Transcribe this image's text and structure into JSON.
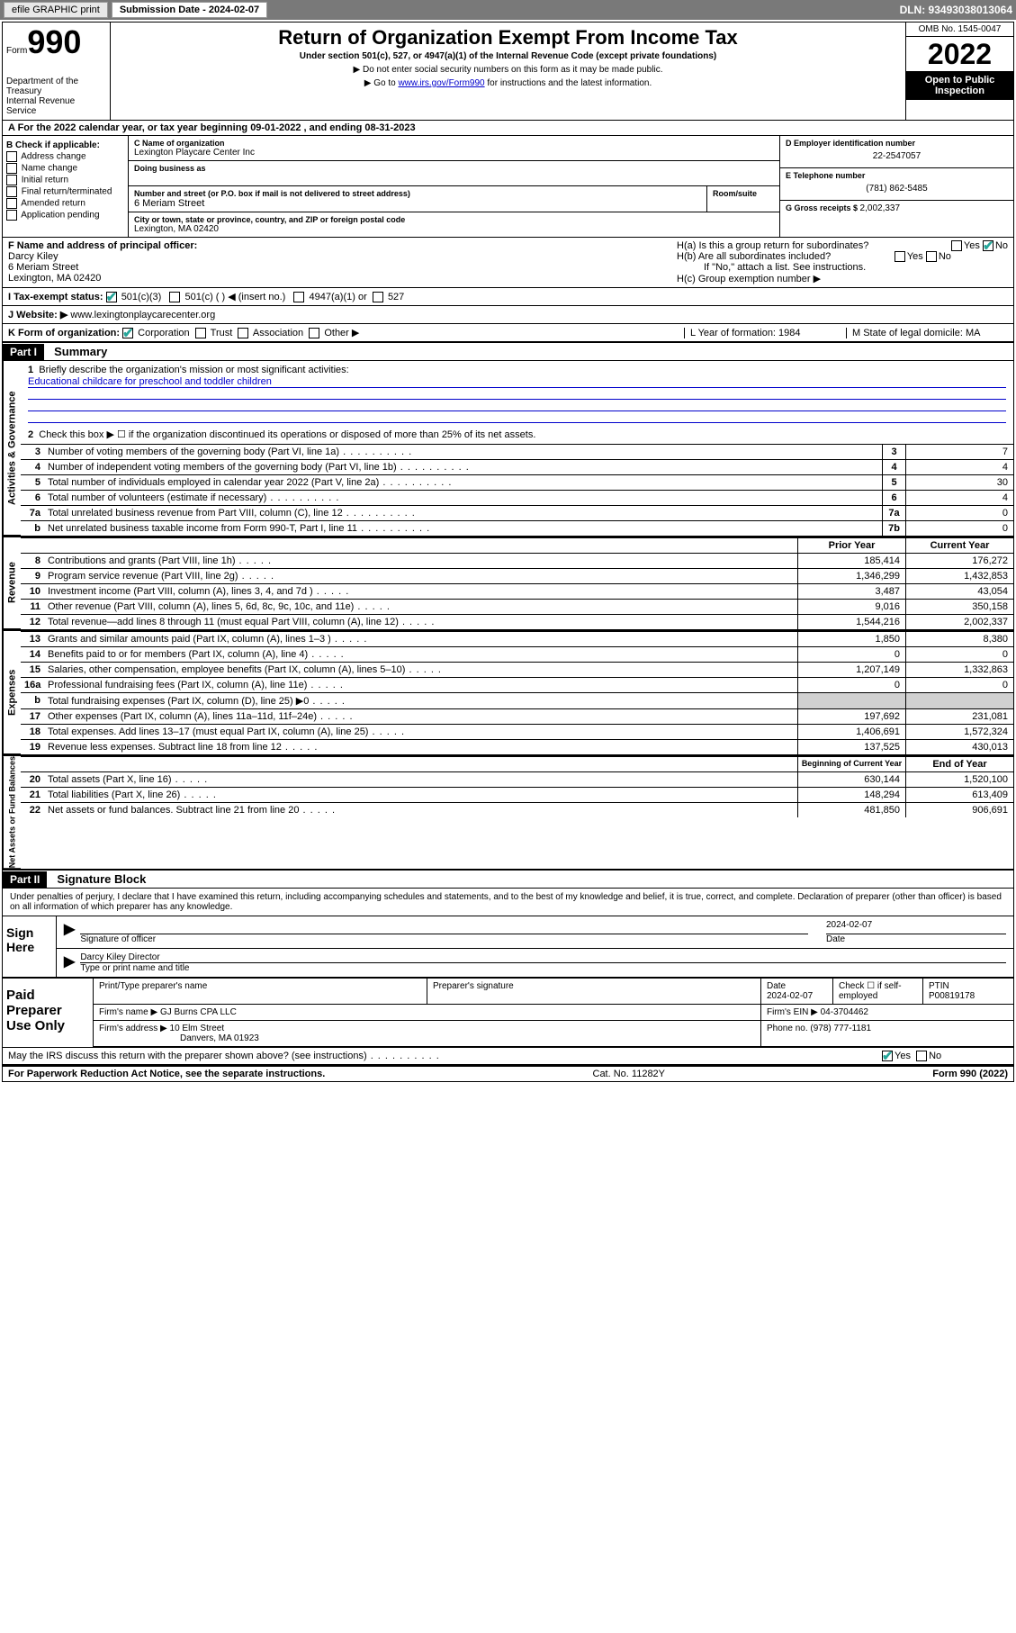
{
  "toolbar": {
    "efile": "efile GRAPHIC print",
    "sub_label": "Submission Date - 2024-02-07",
    "dln": "DLN: 93493038013064"
  },
  "header": {
    "form_word": "Form",
    "form_num": "990",
    "dept": "Department of the Treasury\nInternal Revenue Service",
    "title": "Return of Organization Exempt From Income Tax",
    "sub": "Under section 501(c), 527, or 4947(a)(1) of the Internal Revenue Code (except private foundations)",
    "note1": "▶ Do not enter social security numbers on this form as it may be made public.",
    "note2_pre": "▶ Go to ",
    "note2_link": "www.irs.gov/Form990",
    "note2_post": " for instructions and the latest information.",
    "omb": "OMB No. 1545-0047",
    "year": "2022",
    "inspect": "Open to Public Inspection"
  },
  "row_a": "A For the 2022 calendar year, or tax year beginning 09-01-2022   , and ending 08-31-2023",
  "section_b": {
    "label": "B Check if applicable:",
    "opts": [
      "Address change",
      "Name change",
      "Initial return",
      "Final return/terminated",
      "Amended return",
      "Application pending"
    ]
  },
  "section_c": {
    "name_label": "C Name of organization",
    "name": "Lexington Playcare Center Inc",
    "dba_label": "Doing business as",
    "street_label": "Number and street (or P.O. box if mail is not delivered to street address)",
    "room_label": "Room/suite",
    "street": "6 Meriam Street",
    "city_label": "City or town, state or province, country, and ZIP or foreign postal code",
    "city": "Lexington, MA  02420"
  },
  "section_d": {
    "ein_label": "D Employer identification number",
    "ein": "22-2547057",
    "phone_label": "E Telephone number",
    "phone": "(781) 862-5485",
    "gross_label": "G Gross receipts $ ",
    "gross": "2,002,337"
  },
  "section_f": {
    "label": "F Name and address of principal officer:",
    "name": "Darcy Kiley",
    "addr1": "6 Meriam Street",
    "addr2": "Lexington, MA  02420"
  },
  "section_h": {
    "ha": "H(a)  Is this a group return for subordinates?",
    "hb": "H(b)  Are all subordinates included?",
    "hb_note": "If \"No,\" attach a list. See instructions.",
    "hc": "H(c)  Group exemption number ▶"
  },
  "row_i": {
    "label": "I   Tax-exempt status:",
    "opts": [
      "501(c)(3)",
      "501(c) (  ) ◀ (insert no.)",
      "4947(a)(1) or",
      "527"
    ]
  },
  "row_j": {
    "label": "J   Website: ▶ ",
    "site": "www.lexingtonplaycarecenter.org"
  },
  "row_k": {
    "label": "K Form of organization:",
    "opts": [
      "Corporation",
      "Trust",
      "Association",
      "Other ▶"
    ],
    "l": "L Year of formation: 1984",
    "m": "M State of legal domicile: MA"
  },
  "part1": {
    "hdr": "Part I",
    "title": "Summary",
    "q1": "Briefly describe the organization's mission or most significant activities:",
    "q1_ans": "Educational childcare for preschool and toddler children",
    "q2": "Check this box ▶ ☐  if the organization discontinued its operations or disposed of more than 25% of its net assets."
  },
  "gov": {
    "side": "Activities & Governance",
    "rows": [
      {
        "n": "3",
        "d": "Number of voting members of the governing body (Part VI, line 1a)",
        "box": "3",
        "v": "7"
      },
      {
        "n": "4",
        "d": "Number of independent voting members of the governing body (Part VI, line 1b)",
        "box": "4",
        "v": "4"
      },
      {
        "n": "5",
        "d": "Total number of individuals employed in calendar year 2022 (Part V, line 2a)",
        "box": "5",
        "v": "30"
      },
      {
        "n": "6",
        "d": "Total number of volunteers (estimate if necessary)",
        "box": "6",
        "v": "4"
      },
      {
        "n": "7a",
        "d": "Total unrelated business revenue from Part VIII, column (C), line 12",
        "box": "7a",
        "v": "0"
      },
      {
        "n": "b",
        "d": "Net unrelated business taxable income from Form 990-T, Part I, line 11",
        "box": "7b",
        "v": "0"
      }
    ]
  },
  "rev": {
    "side": "Revenue",
    "hdr_py": "Prior Year",
    "hdr_cy": "Current Year",
    "rows": [
      {
        "n": "8",
        "d": "Contributions and grants (Part VIII, line 1h)",
        "py": "185,414",
        "cy": "176,272"
      },
      {
        "n": "9",
        "d": "Program service revenue (Part VIII, line 2g)",
        "py": "1,346,299",
        "cy": "1,432,853"
      },
      {
        "n": "10",
        "d": "Investment income (Part VIII, column (A), lines 3, 4, and 7d )",
        "py": "3,487",
        "cy": "43,054"
      },
      {
        "n": "11",
        "d": "Other revenue (Part VIII, column (A), lines 5, 6d, 8c, 9c, 10c, and 11e)",
        "py": "9,016",
        "cy": "350,158"
      },
      {
        "n": "12",
        "d": "Total revenue—add lines 8 through 11 (must equal Part VIII, column (A), line 12)",
        "py": "1,544,216",
        "cy": "2,002,337"
      }
    ]
  },
  "exp": {
    "side": "Expenses",
    "rows": [
      {
        "n": "13",
        "d": "Grants and similar amounts paid (Part IX, column (A), lines 1–3 )",
        "py": "1,850",
        "cy": "8,380"
      },
      {
        "n": "14",
        "d": "Benefits paid to or for members (Part IX, column (A), line 4)",
        "py": "0",
        "cy": "0"
      },
      {
        "n": "15",
        "d": "Salaries, other compensation, employee benefits (Part IX, column (A), lines 5–10)",
        "py": "1,207,149",
        "cy": "1,332,863"
      },
      {
        "n": "16a",
        "d": "Professional fundraising fees (Part IX, column (A), line 11e)",
        "py": "0",
        "cy": "0"
      },
      {
        "n": "b",
        "d": "Total fundraising expenses (Part IX, column (D), line 25) ▶0",
        "py": "",
        "cy": "",
        "shade": true
      },
      {
        "n": "17",
        "d": "Other expenses (Part IX, column (A), lines 11a–11d, 11f–24e)",
        "py": "197,692",
        "cy": "231,081"
      },
      {
        "n": "18",
        "d": "Total expenses. Add lines 13–17 (must equal Part IX, column (A), line 25)",
        "py": "1,406,691",
        "cy": "1,572,324"
      },
      {
        "n": "19",
        "d": "Revenue less expenses. Subtract line 18 from line 12",
        "py": "137,525",
        "cy": "430,013"
      }
    ]
  },
  "net": {
    "side": "Net Assets or Fund Balances",
    "hdr_py": "Beginning of Current Year",
    "hdr_cy": "End of Year",
    "rows": [
      {
        "n": "20",
        "d": "Total assets (Part X, line 16)",
        "py": "630,144",
        "cy": "1,520,100"
      },
      {
        "n": "21",
        "d": "Total liabilities (Part X, line 26)",
        "py": "148,294",
        "cy": "613,409"
      },
      {
        "n": "22",
        "d": "Net assets or fund balances. Subtract line 21 from line 20",
        "py": "481,850",
        "cy": "906,691"
      }
    ]
  },
  "part2": {
    "hdr": "Part II",
    "title": "Signature Block",
    "decl": "Under penalties of perjury, I declare that I have examined this return, including accompanying schedules and statements, and to the best of my knowledge and belief, it is true, correct, and complete. Declaration of preparer (other than officer) is based on all information of which preparer has any knowledge."
  },
  "sign": {
    "label": "Sign Here",
    "sig_label": "Signature of officer",
    "date_label": "Date",
    "date": "2024-02-07",
    "name": "Darcy Kiley  Director",
    "name_label": "Type or print name and title"
  },
  "prep": {
    "label": "Paid Preparer Use Only",
    "h1": "Print/Type preparer's name",
    "h2": "Preparer's signature",
    "h3": "Date",
    "h3v": "2024-02-07",
    "h4": "Check ☐ if self-employed",
    "h5": "PTIN",
    "h5v": "P00819178",
    "firm_label": "Firm's name    ▶",
    "firm": "GJ Burns CPA LLC",
    "firm_ein_label": "Firm's EIN ▶",
    "firm_ein": "04-3704462",
    "addr_label": "Firm's address ▶",
    "addr1": "10 Elm Street",
    "addr2": "Danvers, MA  01923",
    "phone_label": "Phone no.",
    "phone": "(978) 777-1181",
    "discuss": "May the IRS discuss this return with the preparer shown above? (see instructions)"
  },
  "footer": {
    "left": "For Paperwork Reduction Act Notice, see the separate instructions.",
    "mid": "Cat. No. 11282Y",
    "right": "Form 990 (2022)"
  }
}
